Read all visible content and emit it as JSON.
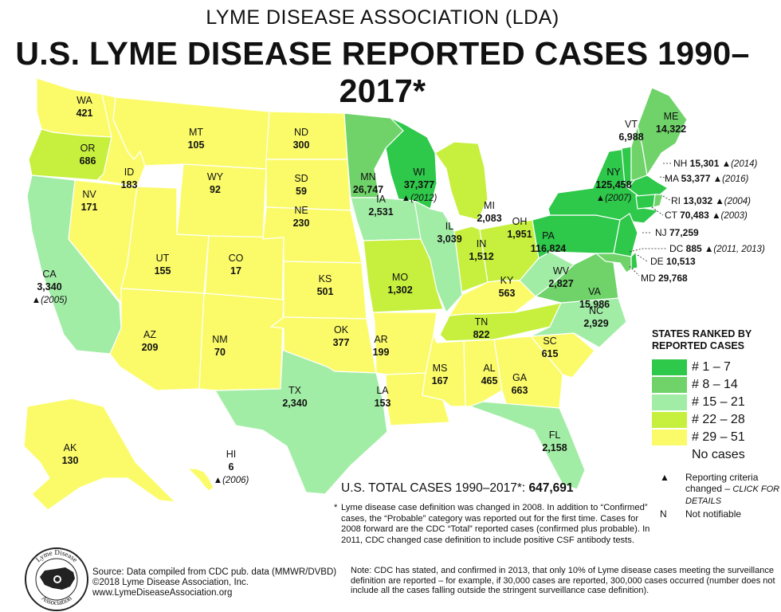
{
  "header": {
    "org_title": "LYME DISEASE ASSOCIATION (LDA)",
    "main_title": "U.S. LYME DISEASE REPORTED CASES 1990–2017*"
  },
  "colors": {
    "rank_1_7": "#2ec84a",
    "rank_8_14": "#6fd36a",
    "rank_15_21": "#a2eda6",
    "rank_22_28": "#c6f03d",
    "rank_29_51": "#fbfb6a",
    "no_cases": "#ffffff"
  },
  "states": {
    "WA": {
      "name": "WA",
      "value": "421"
    },
    "OR": {
      "name": "OR",
      "value": "686"
    },
    "CA": {
      "name": "CA",
      "value": "3,340",
      "note": "▲(2005)"
    },
    "NV": {
      "name": "NV",
      "value": "171"
    },
    "ID": {
      "name": "ID",
      "value": "183"
    },
    "MT": {
      "name": "MT",
      "value": "105"
    },
    "WY": {
      "name": "WY",
      "value": "92"
    },
    "UT": {
      "name": "UT",
      "value": "155"
    },
    "CO": {
      "name": "CO",
      "value": "17"
    },
    "AZ": {
      "name": "AZ",
      "value": "209"
    },
    "NM": {
      "name": "NM",
      "value": "70"
    },
    "ND": {
      "name": "ND",
      "value": "300"
    },
    "SD": {
      "name": "SD",
      "value": "59"
    },
    "NE": {
      "name": "NE",
      "value": "230"
    },
    "KS": {
      "name": "KS",
      "value": "501"
    },
    "OK": {
      "name": "OK",
      "value": "377"
    },
    "TX": {
      "name": "TX",
      "value": "2,340"
    },
    "MN": {
      "name": "MN",
      "value": "26,747"
    },
    "IA": {
      "name": "IA",
      "value": "2,531"
    },
    "MO": {
      "name": "MO",
      "value": "1,302"
    },
    "AR": {
      "name": "AR",
      "value": "199"
    },
    "LA": {
      "name": "LA",
      "value": "153"
    },
    "WI": {
      "name": "WI",
      "value": "37,377",
      "note": "▲(2012)"
    },
    "IL": {
      "name": "IL",
      "value": "3,039"
    },
    "MI": {
      "name": "MI",
      "value": "2,083"
    },
    "IN": {
      "name": "IN",
      "value": "1,512"
    },
    "OH": {
      "name": "OH",
      "value": "1,951"
    },
    "KY": {
      "name": "KY",
      "value": "563"
    },
    "TN": {
      "name": "TN",
      "value": "822"
    },
    "MS": {
      "name": "MS",
      "value": "167"
    },
    "AL": {
      "name": "AL",
      "value": "465"
    },
    "GA": {
      "name": "GA",
      "value": "663"
    },
    "FL": {
      "name": "FL",
      "value": "2,158"
    },
    "SC": {
      "name": "SC",
      "value": "615"
    },
    "NC": {
      "name": "NC",
      "value": "2,929"
    },
    "VA": {
      "name": "VA",
      "value": "15,986"
    },
    "WV": {
      "name": "WV",
      "value": "2,827"
    },
    "PA": {
      "name": "PA",
      "value": "116,824"
    },
    "NY": {
      "name": "NY",
      "value": "125,458",
      "note": "▲(2007)"
    },
    "VT": {
      "name": "VT",
      "value": "6,988"
    },
    "ME": {
      "name": "ME",
      "value": "14,322"
    },
    "AK": {
      "name": "AK",
      "value": "130"
    },
    "HI": {
      "name": "HI",
      "value": "6",
      "note": "▲(2006)"
    }
  },
  "east_labels": {
    "NH": {
      "name": "NH",
      "value": "15,301",
      "note": "▲(2014)"
    },
    "MA": {
      "name": "MA",
      "value": "53,377",
      "note": "▲(2016)"
    },
    "RI": {
      "name": "RI",
      "value": "13,032",
      "note": "▲(2004)"
    },
    "CT": {
      "name": "CT",
      "value": "70,483",
      "note": "▲(2003)"
    },
    "NJ": {
      "name": "NJ",
      "value": "77,259"
    },
    "DC": {
      "name": "DC",
      "value": "885",
      "note": "▲(2011, 2013)"
    },
    "DE": {
      "name": "DE",
      "value": "10,513"
    },
    "MD": {
      "name": "MD",
      "value": "29,768"
    }
  },
  "legend": {
    "title_line1": "STATES RANKED BY",
    "title_line2": "REPORTED CASES",
    "rows": [
      "# 1 – 7",
      "# 8 – 14",
      "# 15 – 21",
      "# 22 – 28",
      "# 29 – 51",
      "No cases"
    ],
    "symbol_triangle": "▲",
    "triangle_text": "Reporting criteria changed –",
    "triangle_link": "CLICK FOR DETAILS",
    "symbol_n": "N",
    "n_text": "Not notifiable"
  },
  "total": {
    "label": "U.S. TOTAL CASES 1990–2017*:",
    "value": "647,691"
  },
  "footnote": {
    "star": "*",
    "text": "Lyme disease case definition was changed in 2008. In addition to “Confirmed” cases, the “Probable” category was reported out for the first time.  Cases for 2008 forward are the CDC “Total” reported cases (confirmed plus probable). In 2011, CDC changed case definition to include positive CSF antibody tests."
  },
  "source": {
    "line1": "Source: Data compiled from CDC pub. data (MMWR/DVBD)",
    "line2": "©2018 Lyme Disease Association, Inc.",
    "line3": "www.LymeDiseaseAssociation.org"
  },
  "note": {
    "text": "Note:  CDC has stated, and confirmed in 2013, that only 10% of Lyme disease cases meeting the surveillance definition are reported – for example, if 30,000 cases are reported, 300,000 cases occurred (number does not include all the cases falling outside the stringent surveillance case definition)."
  },
  "logo": {
    "text_top": "Lyme Disease",
    "text_bottom": "Association"
  }
}
